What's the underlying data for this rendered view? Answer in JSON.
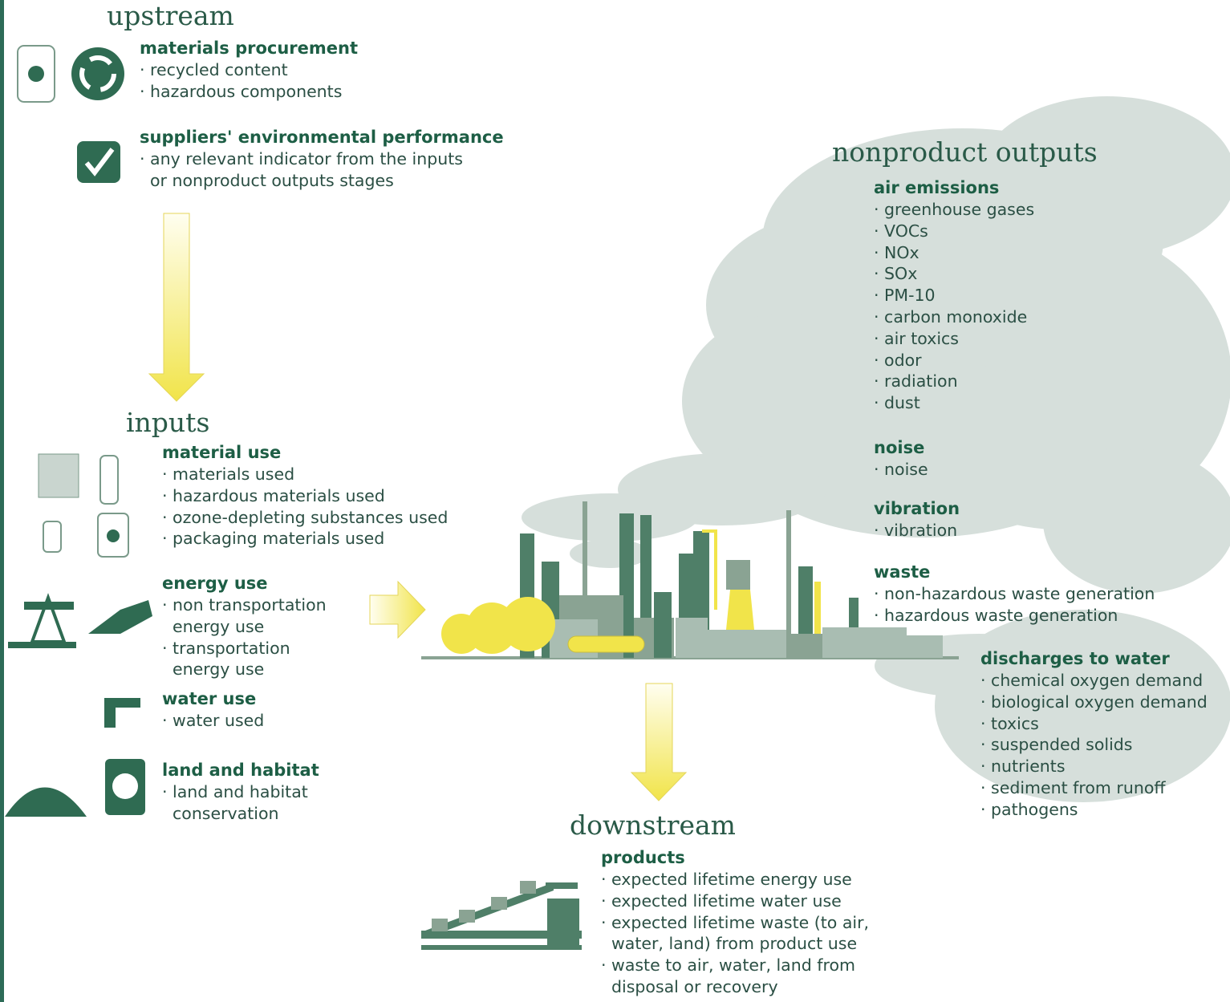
{
  "upstream": {
    "title": "upstream",
    "sections": [
      {
        "heading": "materials procurement",
        "items": [
          "recycled content",
          "hazardous components"
        ]
      },
      {
        "heading": "suppliers' environmental performance",
        "items": [
          "any relevant indicator from the inputs or nonproduct outputs stages"
        ]
      }
    ]
  },
  "inputs": {
    "title": "inputs",
    "sections": [
      {
        "heading": "material use",
        "items": [
          "materials used",
          "hazardous materials used",
          "ozone-depleting substances used",
          "packaging materials used"
        ]
      },
      {
        "heading": "energy use",
        "items": [
          "non transportation energy use",
          "transportation energy use"
        ]
      },
      {
        "heading": "water use",
        "items": [
          "water used"
        ]
      },
      {
        "heading": "land and habitat",
        "items": [
          "land and habitat conservation"
        ]
      }
    ]
  },
  "nonproduct_outputs": {
    "title": "nonproduct outputs",
    "sections": [
      {
        "heading": "air emissions",
        "items": [
          "greenhouse gases",
          "VOCs",
          "NOx",
          "SOx",
          "PM-10",
          "carbon monoxide",
          "air toxics",
          "odor",
          "radiation",
          "dust"
        ]
      },
      {
        "heading": "noise",
        "items": [
          "noise"
        ]
      },
      {
        "heading": "vibration",
        "items": [
          "vibration"
        ]
      },
      {
        "heading": "waste",
        "items": [
          "non-hazardous waste generation",
          "hazardous waste generation"
        ]
      },
      {
        "heading": "discharges to water",
        "items": [
          "chemical oxygen demand",
          "biological oxygen demand",
          "toxics",
          "suspended solids",
          "nutrients",
          "sediment from runoff",
          "pathogens"
        ]
      }
    ]
  },
  "downstream": {
    "title": "downstream",
    "sections": [
      {
        "heading": "products",
        "items": [
          "expected lifetime energy use",
          "expected lifetime water use",
          "expected lifetime waste (to air, water, land) from product use",
          "waste to air, water, land from disposal or recovery"
        ]
      }
    ]
  }
}
